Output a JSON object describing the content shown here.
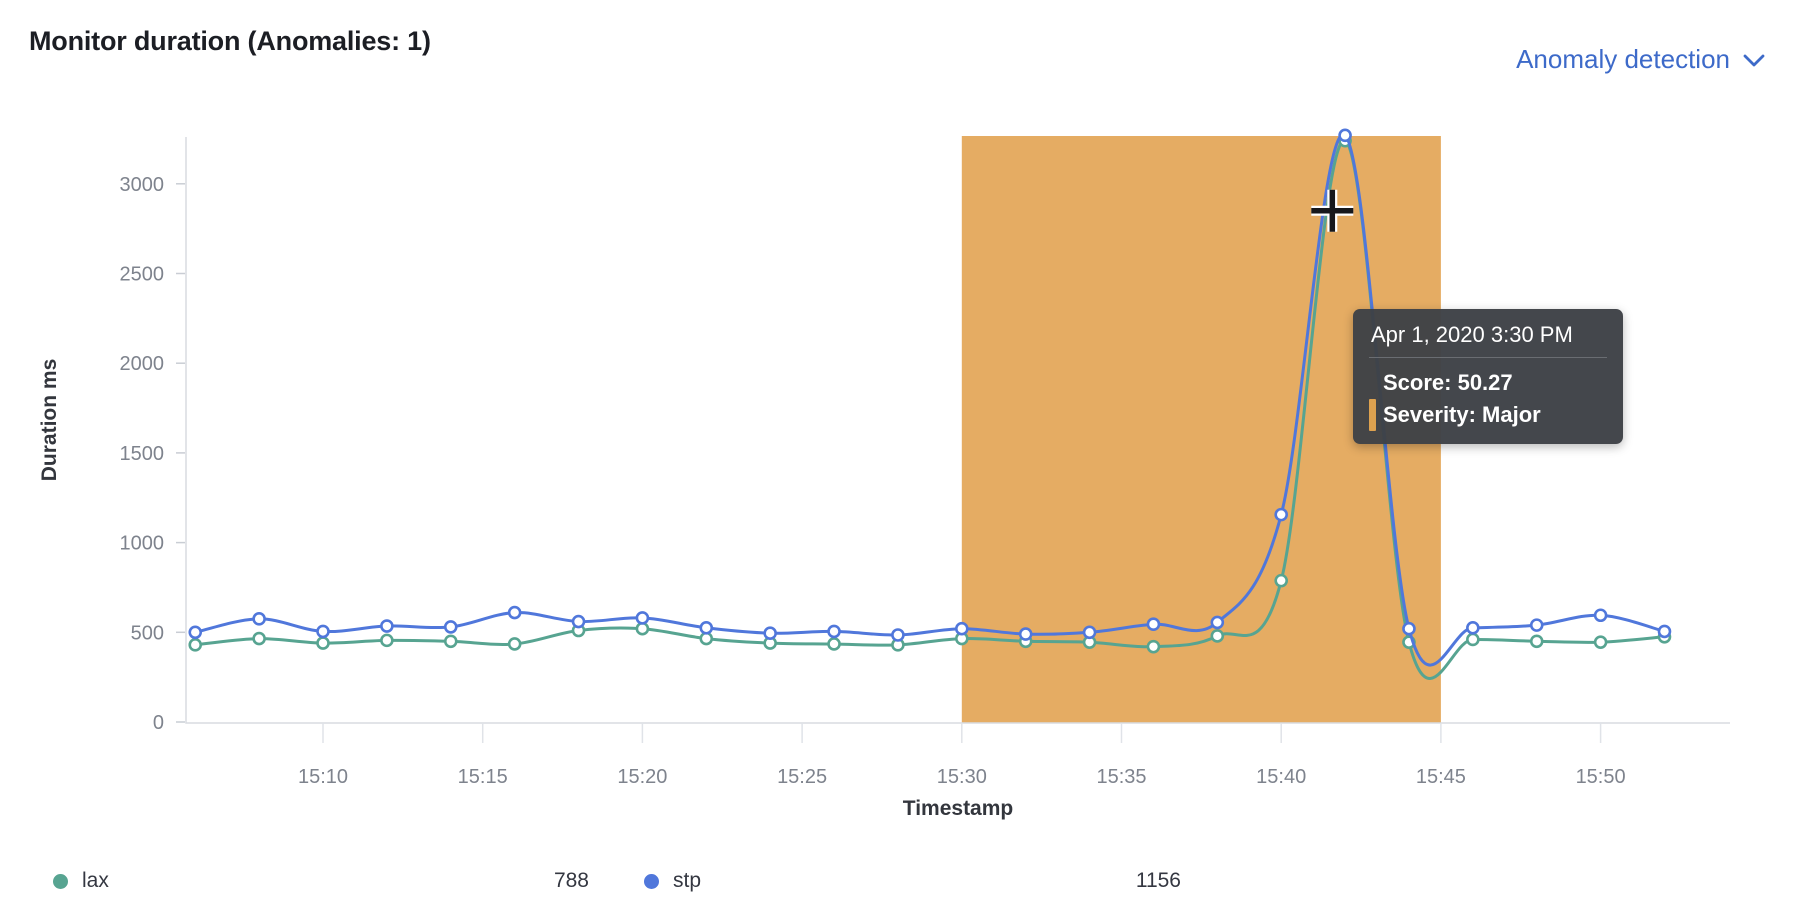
{
  "header": {
    "title": "Monitor duration (Anomalies: 1)",
    "anomaly_selector": {
      "label": "Anomaly detection",
      "icon": "chevron-down-icon"
    }
  },
  "chart_data": {
    "type": "line",
    "xlabel": "Timestamp",
    "ylabel": "Duration ms",
    "x_ticks": [
      "15:10",
      "15:15",
      "15:20",
      "15:25",
      "15:30",
      "15:35",
      "15:40",
      "15:45",
      "15:50"
    ],
    "y_ticks": [
      0,
      500,
      1000,
      1500,
      2000,
      2500,
      3000
    ],
    "ylim": [
      0,
      3270
    ],
    "grid": "off",
    "legend_position": "bottom",
    "x": [
      "15:06",
      "15:08",
      "15:10",
      "15:12",
      "15:14",
      "15:16",
      "15:18",
      "15:20",
      "15:22",
      "15:24",
      "15:26",
      "15:28",
      "15:30",
      "15:32",
      "15:34",
      "15:36",
      "15:38",
      "15:40",
      "15:42",
      "15:44",
      "15:46",
      "15:48",
      "15:50",
      "15:52"
    ],
    "series": [
      {
        "name": "lax",
        "color": "#57a491",
        "values": [
          430,
          465,
          440,
          455,
          450,
          435,
          510,
          520,
          465,
          440,
          435,
          430,
          465,
          450,
          445,
          420,
          480,
          788,
          3240,
          445,
          460,
          450,
          445,
          475
        ]
      },
      {
        "name": "stp",
        "color": "#5077db",
        "values": [
          500,
          575,
          505,
          535,
          530,
          610,
          560,
          580,
          525,
          495,
          505,
          485,
          520,
          490,
          500,
          545,
          555,
          1156,
          3270,
          520,
          525,
          540,
          595,
          505
        ]
      }
    ],
    "anomaly_region": {
      "start": "15:30",
      "end": "15:45",
      "color": "#e5ac63",
      "anomalies": 1
    },
    "crosshair": {
      "minutes_after_1500": 41.6,
      "value_ms": 2850
    },
    "tooltip": {
      "title": "Apr 1, 2020 3:30 PM",
      "rows": [
        {
          "label": "Score: 50.27",
          "marker_color": ""
        },
        {
          "label": "Severity: Major",
          "marker_color": "#dea24f"
        }
      ]
    },
    "legend": [
      {
        "label": "lax",
        "value": "788",
        "color": "#57a491"
      },
      {
        "label": "stp",
        "value": "1156",
        "color": "#5077db"
      }
    ]
  }
}
